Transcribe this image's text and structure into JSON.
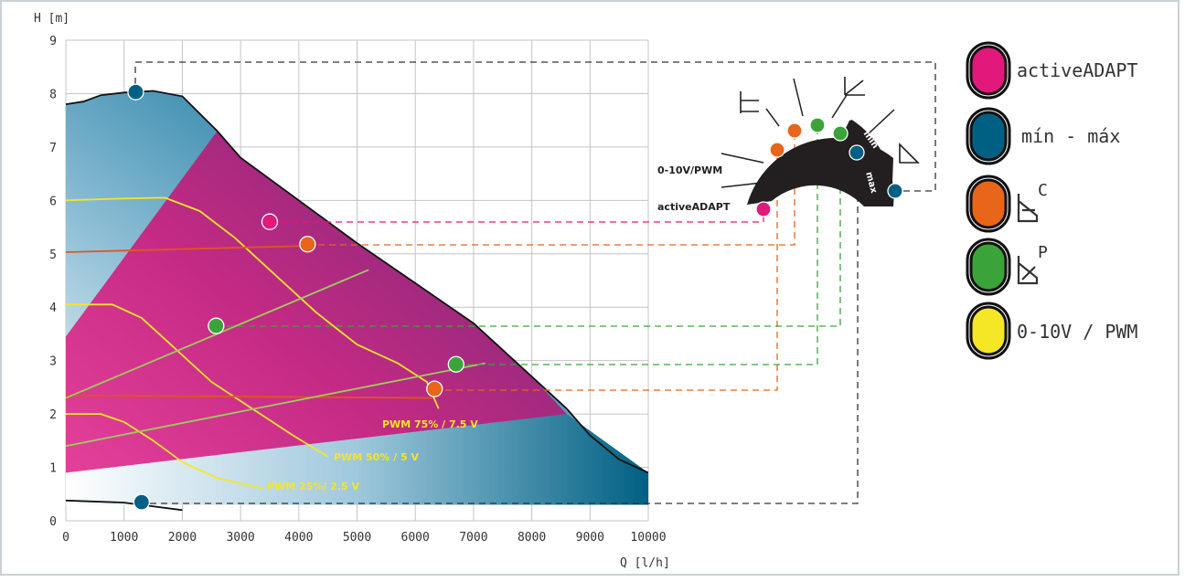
{
  "chart_data": {
    "type": "line",
    "title": "",
    "xlabel": "Q [l/h]",
    "ylabel": "H [m]",
    "xlim": [
      0,
      10000
    ],
    "ylim": [
      0,
      9
    ],
    "x_ticks": [
      "0",
      "1000",
      "2000",
      "3000",
      "4000",
      "5000",
      "6000",
      "7000",
      "8000",
      "9000",
      "10000"
    ],
    "y_ticks": [
      "0",
      "1",
      "2",
      "3",
      "4",
      "5",
      "6",
      "7",
      "8",
      "9"
    ],
    "grid": true,
    "envelope_max": [
      [
        0,
        7.8
      ],
      [
        300,
        7.85
      ],
      [
        600,
        7.97
      ],
      [
        1000,
        8.02
      ],
      [
        1500,
        8.05
      ],
      [
        2000,
        7.95
      ],
      [
        2600,
        7.3
      ],
      [
        3000,
        6.8
      ],
      [
        4000,
        6.0
      ],
      [
        5000,
        5.2
      ],
      [
        6000,
        4.45
      ],
      [
        7000,
        3.7
      ],
      [
        8000,
        2.7
      ],
      [
        8600,
        2.1
      ],
      [
        9000,
        1.6
      ],
      [
        9500,
        1.15
      ],
      [
        10000,
        0.9
      ]
    ],
    "envelope_min": [
      [
        0,
        0.38
      ],
      [
        1000,
        0.34
      ],
      [
        2000,
        0.2
      ]
    ],
    "adapt_region": [
      [
        0,
        3.45
      ],
      [
        2600,
        7.3
      ],
      [
        3000,
        6.8
      ],
      [
        4000,
        6.0
      ],
      [
        5000,
        5.2
      ],
      [
        6000,
        4.45
      ],
      [
        7000,
        3.7
      ],
      [
        8000,
        2.7
      ],
      [
        8600,
        2.0
      ],
      [
        0,
        0.9
      ]
    ],
    "series": [
      {
        "name": "PWM 75% / 7.5 V",
        "color": "#f5e626",
        "values": [
          [
            0,
            6.0
          ],
          [
            800,
            6.03
          ],
          [
            1700,
            6.05
          ],
          [
            2300,
            5.8
          ],
          [
            2900,
            5.3
          ],
          [
            3600,
            4.6
          ],
          [
            4300,
            3.9
          ],
          [
            5000,
            3.3
          ],
          [
            5700,
            2.95
          ],
          [
            6200,
            2.6
          ],
          [
            6400,
            2.1
          ]
        ]
      },
      {
        "name": "PWM 50% / 5 V",
        "color": "#f5e626",
        "values": [
          [
            0,
            4.05
          ],
          [
            800,
            4.05
          ],
          [
            1300,
            3.8
          ],
          [
            1800,
            3.3
          ],
          [
            2500,
            2.6
          ],
          [
            3200,
            2.1
          ],
          [
            3900,
            1.6
          ],
          [
            4500,
            1.2
          ]
        ]
      },
      {
        "name": "PWM 25%/ 2.5 V",
        "color": "#f5e626",
        "values": [
          [
            0,
            2.0
          ],
          [
            600,
            2.0
          ],
          [
            1000,
            1.85
          ],
          [
            1500,
            1.5
          ],
          [
            2000,
            1.1
          ],
          [
            2600,
            0.8
          ],
          [
            3400,
            0.6
          ]
        ]
      },
      {
        "name": "",
        "color": "#e2541e",
        "values": [
          [
            0,
            5.03
          ],
          [
            4200,
            5.15
          ]
        ]
      },
      {
        "name": "",
        "color": "#e2541e",
        "values": [
          [
            0,
            2.35
          ],
          [
            6300,
            2.3
          ]
        ]
      },
      {
        "name": "",
        "color": "#9dcc5c",
        "values": [
          [
            0,
            2.3
          ],
          [
            5200,
            4.7
          ]
        ]
      },
      {
        "name": "",
        "color": "#9dcc5c",
        "values": [
          [
            0,
            1.4
          ],
          [
            7200,
            2.95
          ]
        ]
      }
    ],
    "annotations": [
      "PWM 75% / 7.5 V",
      "PWM 50% / 5 V",
      "PWM 25%/ 2.5 V"
    ],
    "markers": [
      {
        "mode": "min - max",
        "color": "#006083",
        "x": 1200,
        "y": 8.03
      },
      {
        "mode": "min - max",
        "color": "#006083",
        "x": 1300,
        "y": 0.35
      },
      {
        "mode": "activeADAPT",
        "color": "#e2187b",
        "x": 3500,
        "y": 5.6
      },
      {
        "mode": "constant pressure",
        "color": "#e8651a",
        "x": 4150,
        "y": 5.18
      },
      {
        "mode": "constant pressure",
        "color": "#e8651a",
        "x": 6330,
        "y": 2.47
      },
      {
        "mode": "proportional pressure",
        "color": "#3aa33a",
        "x": 2580,
        "y": 3.65
      },
      {
        "mode": "proportional pressure",
        "color": "#3aa33a",
        "x": 6700,
        "y": 2.93
      }
    ]
  },
  "dial": {
    "label_pwm": "0-10V/PWM",
    "label_adapt": "activeADAPT",
    "segments": [
      "1",
      "2",
      "1",
      "2",
      "min",
      "max"
    ]
  },
  "legend": [
    {
      "label": "activeADAPT",
      "color": "#e2187b"
    },
    {
      "label": "mín - máx",
      "color": "#006083"
    },
    {
      "label": "C",
      "color": "#e8651a"
    },
    {
      "label": "P",
      "color": "#3aa33a"
    },
    {
      "label": "0-10V / PWM",
      "color": "#f5e626"
    }
  ],
  "colors": {
    "blue_dark": "#006083",
    "blue_light": "#a9cde0",
    "magenta": "#e2187b",
    "purple": "#7b2a7a",
    "orange": "#e8651a",
    "green": "#3aa33a",
    "yellow": "#f5e626",
    "grid": "#c4c4c4"
  }
}
